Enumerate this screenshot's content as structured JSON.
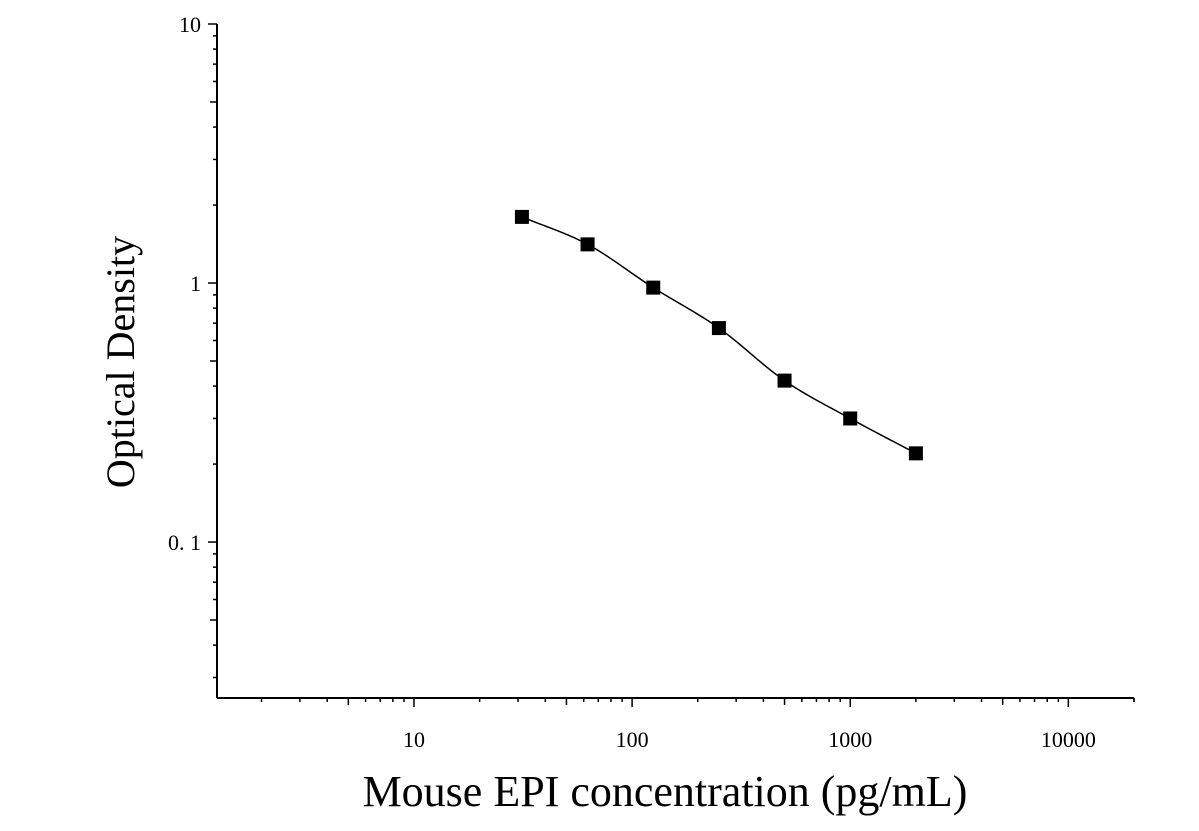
{
  "chart_data": {
    "type": "scatter",
    "title": "",
    "xlabel": "Mouse EPI concentration (pg/mL)",
    "ylabel": "Optical Density",
    "x_scale": "log",
    "y_scale": "log",
    "xlim": [
      1.25,
      20000
    ],
    "ylim": [
      0.025,
      10
    ],
    "x_ticks": [
      {
        "value": 10,
        "label": "10"
      },
      {
        "value": 100,
        "label": "100"
      },
      {
        "value": 1000,
        "label": "1000"
      },
      {
        "value": 10000,
        "label": "10000"
      }
    ],
    "y_ticks": [
      {
        "value": 0.1,
        "label": "0. 1"
      },
      {
        "value": 1,
        "label": "1"
      },
      {
        "value": 10,
        "label": "10"
      }
    ],
    "grid": false,
    "legend": "none",
    "series": [
      {
        "marker": "square",
        "fit_line": "four-parameter logistic curve",
        "x": [
          31.25,
          62.5,
          125,
          250,
          500,
          1000,
          2000
        ],
        "y": [
          1.8,
          1.41,
          0.96,
          0.67,
          0.42,
          0.3,
          0.22
        ]
      }
    ],
    "colors": {
      "axis": "#000000",
      "marker": "#000000",
      "curve": "#000000",
      "background": "#ffffff"
    }
  }
}
